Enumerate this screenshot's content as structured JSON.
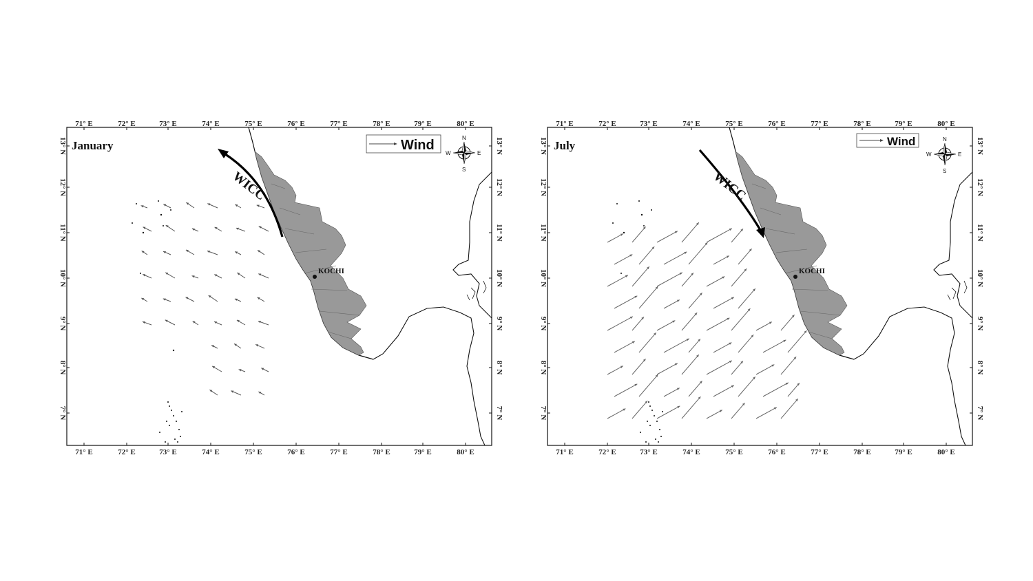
{
  "panels": [
    {
      "id": "jan",
      "month": "January",
      "legend_label": "Wind",
      "current_label": "WICC",
      "city_label": "KOCHI",
      "current_direction": "northward",
      "compass": {
        "n": "N",
        "e": "E",
        "s": "S",
        "w": "W"
      },
      "x_ticks": [
        "71° E",
        "72° E",
        "73° E",
        "74° E",
        "75° E",
        "76° E",
        "77° E",
        "78° E",
        "79° E",
        "80° E"
      ],
      "y_ticks": [
        "13° N",
        "12° N",
        "11° N",
        "10° N",
        "9° N",
        "8° N",
        "7° N"
      ],
      "wind_color": "#555555"
    },
    {
      "id": "jul",
      "month": "July",
      "legend_label": "Wind",
      "current_label": "WICC",
      "city_label": "KOCHI",
      "current_direction": "southward",
      "compass": {
        "n": "N",
        "e": "E",
        "s": "S",
        "w": "W"
      },
      "x_ticks": [
        "71° E",
        "72° E",
        "73° E",
        "74° E",
        "75° E",
        "76° E",
        "77° E",
        "78° E",
        "79° E",
        "80° E"
      ],
      "y_ticks": [
        "13° N",
        "12° N",
        "11° N",
        "10° N",
        "9° N",
        "8° N",
        "7° N"
      ],
      "wind_color": "#666666"
    }
  ],
  "colors": {
    "land": "#999999",
    "coast": "#111111",
    "frame": "#111111"
  }
}
